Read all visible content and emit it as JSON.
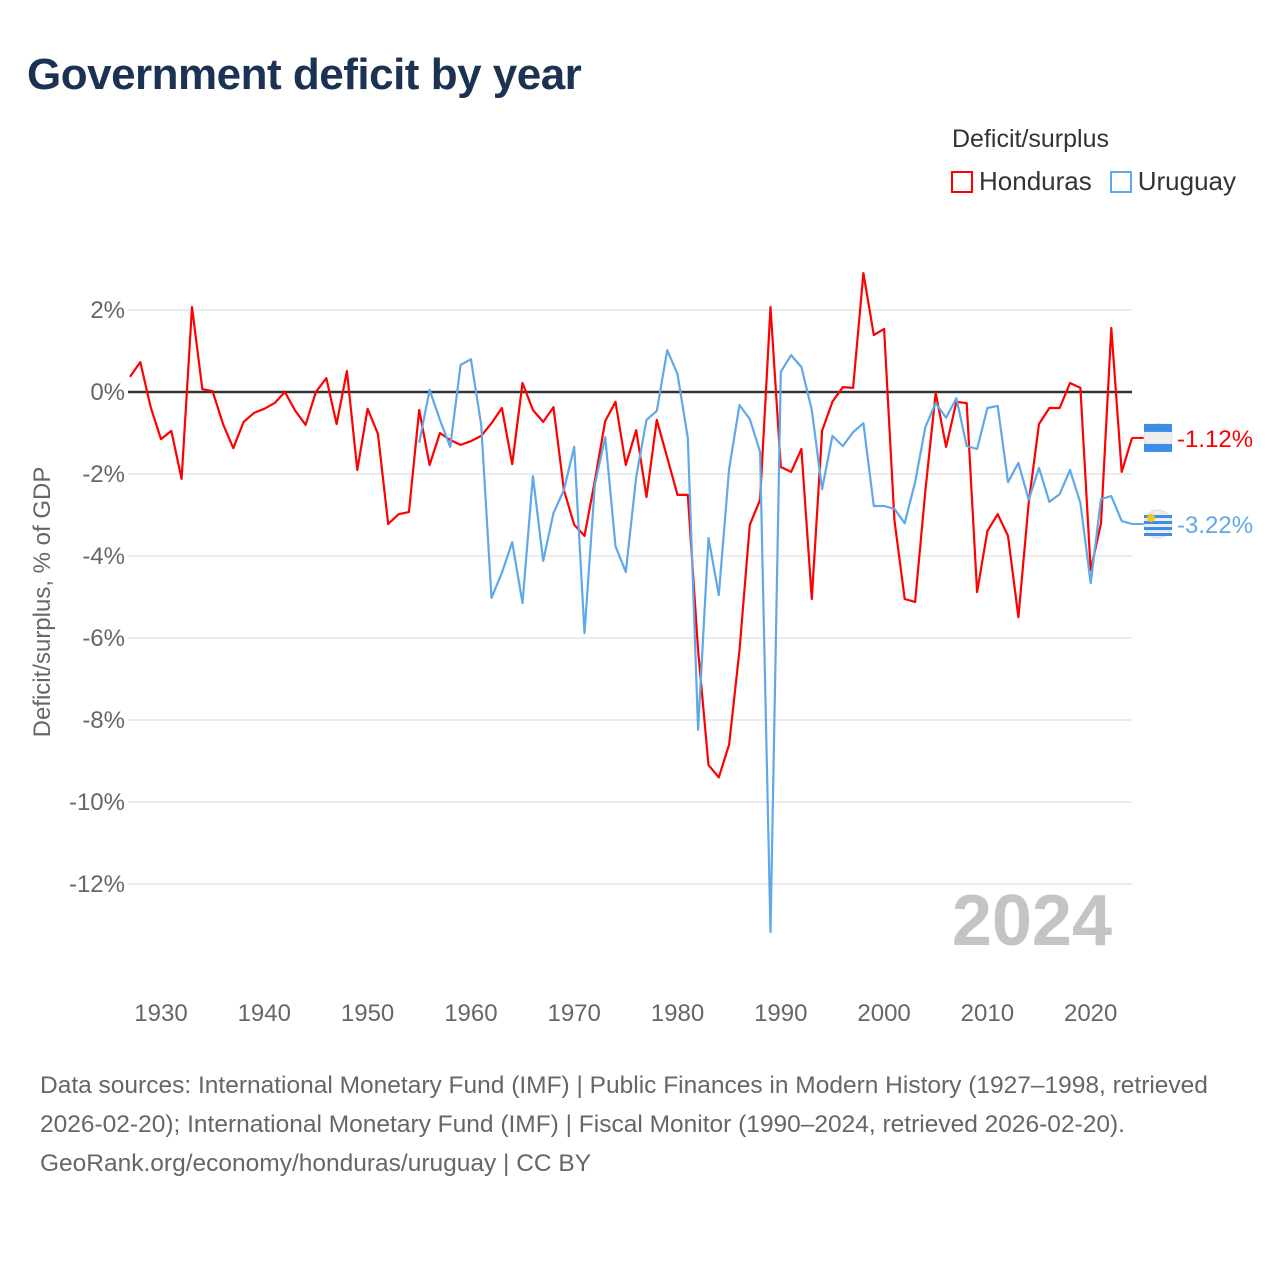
{
  "title": "Government deficit by year",
  "legend": {
    "title": "Deficit/surplus",
    "items": [
      {
        "label": "Honduras",
        "color": "#ff0000"
      },
      {
        "label": "Uruguay",
        "color": "#5fa8ea"
      }
    ]
  },
  "footer": {
    "sources": "Data sources: International Monetary Fund (IMF) | Public Finances in Modern History (1927–1998, retrieved 2026-02-20); International Monetary Fund (IMF) | Fiscal Monitor (1990–2024, retrieved 2026-02-20).",
    "credit": "GeoRank.org/economy/honduras/uruguay | CC BY"
  },
  "chart_data": {
    "type": "line",
    "title": "Government deficit by year",
    "xlabel": "",
    "ylabel": "Deficit/surplus, % of GDP",
    "year_watermark": "2024",
    "xlim": [
      1927,
      2024
    ],
    "ylim": [
      -13.2,
      3
    ],
    "xticks": [
      1930,
      1940,
      1950,
      1960,
      1970,
      1980,
      1990,
      2000,
      2010,
      2020
    ],
    "yticks": [
      2,
      0,
      -2,
      -4,
      -6,
      -8,
      -10,
      -12
    ],
    "ytick_labels": [
      "2%",
      "0%",
      "-2%",
      "-4%",
      "-6%",
      "-8%",
      "-10%",
      "-12%"
    ],
    "series": [
      {
        "name": "Honduras",
        "color": "#ff0000",
        "end_label": "-1.12%",
        "start": 1927,
        "values": [
          0.37,
          0.73,
          -0.37,
          -1.15,
          -0.95,
          -2.12,
          2.07,
          0.07,
          0.02,
          -0.78,
          -1.37,
          -0.73,
          -0.51,
          -0.41,
          -0.27,
          0,
          -0.46,
          -0.8,
          0,
          0.34,
          -0.78,
          0.51,
          -1.9,
          -0.41,
          -1.02,
          -3.22,
          -2.98,
          -2.93,
          -0.44,
          -1.78,
          -1.0,
          -1.17,
          -1.29,
          -1.2,
          -1.07,
          -0.76,
          -0.39,
          -1.76,
          0.22,
          -0.44,
          -0.73,
          -0.37,
          -2.39,
          -3.24,
          -3.51,
          -2.17,
          -0.71,
          -0.24,
          -1.78,
          -0.93,
          -2.56,
          -0.68,
          -1.6,
          -2.51,
          -2.51,
          -6.3,
          -9.1,
          -9.4,
          -8.6,
          -6.3,
          -3.24,
          -2.63,
          2.07,
          -1.83,
          -1.95,
          -1.39,
          -5.05,
          -0.95,
          -0.24,
          0.12,
          0.1,
          2.9,
          1.39,
          1.54,
          -3.12,
          -5.05,
          -5.12,
          -2.4,
          -0.02,
          -1.34,
          -0.24,
          -0.27,
          -4.88,
          -3.39,
          -2.98,
          -3.51,
          -5.49,
          -2.7,
          -0.78,
          -0.39,
          -0.39,
          0.22,
          0.1,
          -4.35,
          -3.2,
          1.56,
          -1.95,
          -1.12
        ]
      },
      {
        "name": "Uruguay",
        "color": "#5fa8ea",
        "end_label": "-3.22%",
        "start": 1955,
        "values": [
          -1.24,
          0.05,
          -0.68,
          -1.34,
          0.66,
          0.8,
          -0.8,
          -5.02,
          -4.41,
          -3.66,
          -5.15,
          -2.05,
          -4.12,
          -2.95,
          -2.39,
          -1.34,
          -5.88,
          -2.27,
          -1.1,
          -3.76,
          -4.39,
          -2.07,
          -0.68,
          -0.46,
          1.02,
          0.44,
          -1.12,
          -8.24,
          -3.56,
          -4.95,
          -1.88,
          -0.32,
          -0.66,
          -1.46,
          -13.17,
          0.49,
          0.9,
          0.61,
          -0.44,
          -2.37,
          -1.07,
          -1.32,
          -0.98,
          -0.76,
          -2.78,
          -2.78,
          -2.85,
          -3.2,
          -2.2,
          -0.85,
          -0.27,
          -0.63,
          -0.15,
          -1.32,
          -1.39,
          -0.39,
          -0.34,
          -2.2,
          -1.73,
          -2.63,
          -1.85,
          -2.68,
          -2.49,
          -1.9,
          -2.71,
          -4.66,
          -2.61,
          -2.54,
          -3.15,
          -3.22
        ]
      }
    ]
  }
}
